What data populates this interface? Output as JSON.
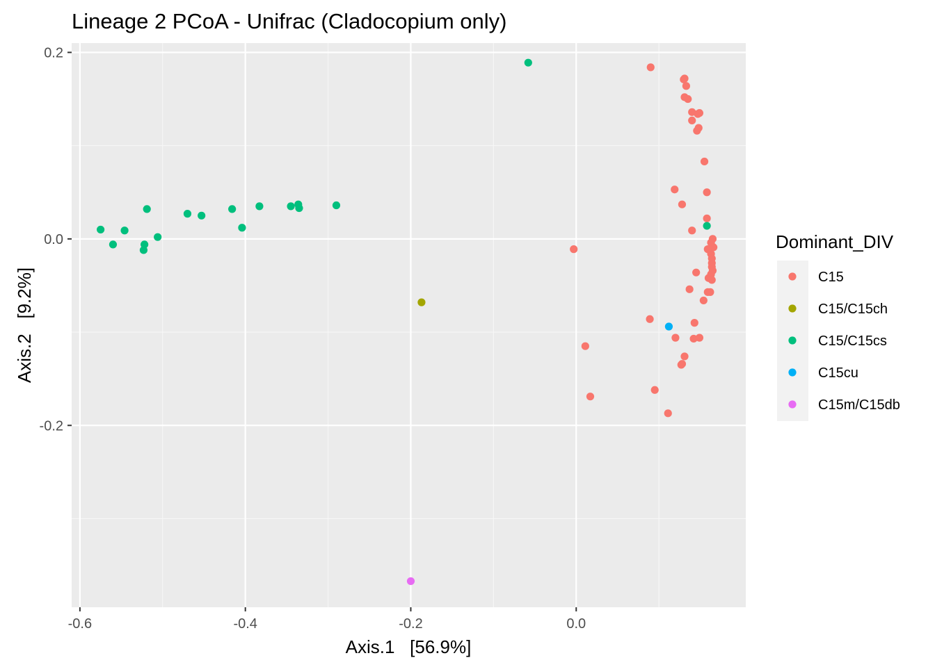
{
  "chart_data": {
    "type": "scatter",
    "title": "Lineage 2 PCoA - Unifrac (Cladocopium only)",
    "xlabel": "Axis.1   [56.9%]",
    "ylabel": "Axis.2   [9.2%]",
    "xlim": [
      -0.61,
      0.205
    ],
    "ylim": [
      -0.395,
      0.21
    ],
    "x_ticks": [
      -0.6,
      -0.4,
      -0.2,
      0.0
    ],
    "x_tick_labels": [
      "-0.6",
      "-0.4",
      "-0.2",
      "0.0"
    ],
    "y_ticks": [
      0.2,
      0.0,
      -0.2
    ],
    "y_tick_labels": [
      "0.2",
      "0.0",
      "-0.2"
    ],
    "grid": true,
    "legend": {
      "title": "Dominant_DIV",
      "position": "right"
    },
    "series": [
      {
        "name": "C15",
        "color": "#F8766D",
        "points": [
          [
            0.09,
            0.184
          ],
          [
            0.131,
            0.172
          ],
          [
            0.13,
            0.171
          ],
          [
            0.133,
            0.164
          ],
          [
            0.131,
            0.152
          ],
          [
            0.135,
            0.15
          ],
          [
            0.14,
            0.136
          ],
          [
            0.149,
            0.135
          ],
          [
            0.147,
            0.134
          ],
          [
            0.14,
            0.127
          ],
          [
            0.148,
            0.119
          ],
          [
            0.146,
            0.116
          ],
          [
            0.155,
            0.083
          ],
          [
            0.119,
            0.053
          ],
          [
            0.158,
            0.05
          ],
          [
            0.128,
            0.037
          ],
          [
            0.158,
            0.022
          ],
          [
            0.14,
            0.009
          ],
          [
            0.165,
            0.0
          ],
          [
            0.163,
            -0.004
          ],
          [
            0.166,
            -0.009
          ],
          [
            0.159,
            -0.011
          ],
          [
            0.163,
            -0.016
          ],
          [
            0.164,
            -0.021
          ],
          [
            0.164,
            -0.026
          ],
          [
            0.164,
            -0.03
          ],
          [
            0.165,
            -0.034
          ],
          [
            0.145,
            -0.036
          ],
          [
            0.163,
            -0.038
          ],
          [
            0.16,
            -0.042
          ],
          [
            0.164,
            -0.044
          ],
          [
            0.137,
            -0.054
          ],
          [
            0.159,
            -0.057
          ],
          [
            0.162,
            -0.057
          ],
          [
            0.154,
            -0.066
          ],
          [
            -0.003,
            -0.011
          ],
          [
            0.089,
            -0.086
          ],
          [
            0.143,
            -0.09
          ],
          [
            0.12,
            -0.106
          ],
          [
            0.142,
            -0.107
          ],
          [
            0.149,
            -0.106
          ],
          [
            0.131,
            -0.126
          ],
          [
            0.127,
            -0.135
          ],
          [
            0.128,
            -0.134
          ],
          [
            0.011,
            -0.115
          ],
          [
            0.095,
            -0.162
          ],
          [
            0.017,
            -0.169
          ],
          [
            0.111,
            -0.187
          ]
        ]
      },
      {
        "name": "C15/C15ch",
        "color": "#A3A500",
        "points": [
          [
            -0.187,
            -0.068
          ]
        ]
      },
      {
        "name": "C15/C15cs",
        "color": "#00BF7D",
        "points": [
          [
            -0.058,
            0.189
          ],
          [
            -0.575,
            0.01
          ],
          [
            -0.56,
            -0.006
          ],
          [
            -0.546,
            0.009
          ],
          [
            -0.519,
            0.032
          ],
          [
            -0.522,
            -0.006
          ],
          [
            -0.523,
            -0.012
          ],
          [
            -0.506,
            0.002
          ],
          [
            -0.47,
            0.027
          ],
          [
            -0.453,
            0.025
          ],
          [
            -0.416,
            0.032
          ],
          [
            -0.404,
            0.012
          ],
          [
            -0.383,
            0.035
          ],
          [
            -0.345,
            0.035
          ],
          [
            -0.336,
            0.037
          ],
          [
            -0.335,
            0.033
          ],
          [
            -0.29,
            0.036
          ],
          [
            0.158,
            0.014
          ]
        ]
      },
      {
        "name": "C15cu",
        "color": "#00B0F6",
        "points": [
          [
            0.112,
            -0.094
          ]
        ]
      },
      {
        "name": "C15m/C15db",
        "color": "#E76BF3",
        "points": [
          [
            -0.2,
            -0.367
          ]
        ]
      }
    ]
  }
}
